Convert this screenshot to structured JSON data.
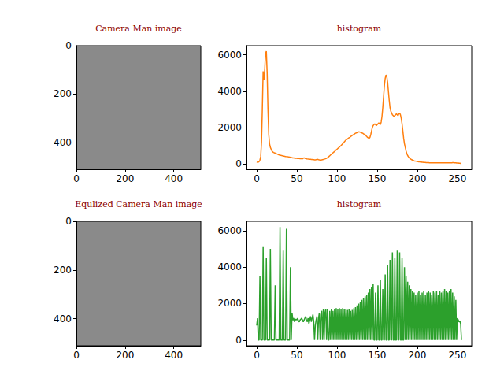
{
  "chart_data": [
    {
      "type": "image",
      "title": "Camera Man image",
      "xlim": [
        -0.5,
        511.5
      ],
      "ylim": [
        511.5,
        -0.5
      ],
      "xticks": [
        0,
        200,
        400
      ],
      "yticks": [
        0,
        200,
        400
      ]
    },
    {
      "type": "line",
      "title": "histogram",
      "color": "#ff7f0e",
      "x": [
        0,
        1,
        2,
        3,
        4,
        5,
        6,
        7,
        8,
        9,
        10,
        11,
        12,
        13,
        14,
        15,
        16,
        17,
        18,
        19,
        20,
        21,
        22,
        23,
        24,
        25,
        26,
        27,
        28,
        29,
        30,
        31,
        32,
        33,
        34,
        35,
        36,
        37,
        38,
        39,
        40,
        41,
        42,
        43,
        44,
        45,
        46,
        47,
        48,
        49,
        50,
        51,
        52,
        53,
        54,
        55,
        56,
        57,
        58,
        59,
        60,
        61,
        62,
        63,
        64,
        65,
        66,
        67,
        68,
        69,
        70,
        71,
        72,
        73,
        74,
        75,
        76,
        77,
        78,
        79,
        80,
        81,
        82,
        83,
        84,
        85,
        86,
        87,
        88,
        89,
        90,
        91,
        92,
        93,
        94,
        95,
        96,
        97,
        98,
        99,
        100,
        101,
        102,
        103,
        104,
        105,
        106,
        107,
        108,
        109,
        110,
        111,
        112,
        113,
        114,
        115,
        116,
        117,
        118,
        119,
        120,
        121,
        122,
        123,
        124,
        125,
        126,
        127,
        128,
        129,
        130,
        131,
        132,
        133,
        134,
        135,
        136,
        137,
        138,
        139,
        140,
        141,
        142,
        143,
        144,
        145,
        146,
        147,
        148,
        149,
        150,
        151,
        152,
        153,
        154,
        155,
        156,
        157,
        158,
        159,
        160,
        161,
        162,
        163,
        164,
        165,
        166,
        167,
        168,
        169,
        170,
        171,
        172,
        173,
        174,
        175,
        176,
        177,
        178,
        179,
        180,
        181,
        182,
        183,
        184,
        185,
        186,
        187,
        188,
        189,
        190,
        191,
        192,
        193,
        194,
        195,
        196,
        197,
        198,
        199,
        200,
        201,
        202,
        203,
        204,
        205,
        206,
        207,
        208,
        209,
        210,
        211,
        212,
        213,
        214,
        215,
        216,
        217,
        218,
        219,
        220,
        221,
        222,
        223,
        224,
        225,
        226,
        227,
        228,
        229,
        230,
        231,
        232,
        233,
        234,
        235,
        236,
        237,
        238,
        239,
        240,
        241,
        242,
        243,
        244,
        245,
        246,
        247,
        248,
        249,
        250,
        251,
        252,
        253,
        254,
        255
      ],
      "values": [
        100,
        80,
        90,
        120,
        200,
        400,
        1200,
        3000,
        5100,
        4600,
        5200,
        6100,
        6200,
        5000,
        3000,
        1600,
        1100,
        900,
        800,
        700,
        650,
        620,
        600,
        580,
        560,
        540,
        520,
        500,
        480,
        470,
        460,
        450,
        440,
        430,
        420,
        410,
        400,
        390,
        380,
        380,
        370,
        360,
        350,
        340,
        330,
        320,
        320,
        310,
        300,
        300,
        300,
        290,
        290,
        290,
        280,
        280,
        280,
        270,
        300,
        330,
        300,
        280,
        270,
        260,
        250,
        250,
        240,
        240,
        230,
        230,
        220,
        220,
        210,
        210,
        220,
        230,
        240,
        220,
        210,
        200,
        200,
        210,
        220,
        230,
        250,
        260,
        280,
        300,
        330,
        360,
        400,
        440,
        480,
        520,
        560,
        600,
        640,
        680,
        720,
        760,
        800,
        840,
        880,
        920,
        960,
        1000,
        1050,
        1100,
        1150,
        1200,
        1250,
        1300,
        1330,
        1360,
        1400,
        1430,
        1460,
        1500,
        1530,
        1560,
        1600,
        1620,
        1650,
        1680,
        1700,
        1720,
        1740,
        1760,
        1750,
        1740,
        1720,
        1700,
        1680,
        1650,
        1620,
        1600,
        1550,
        1500,
        1450,
        1420,
        1400,
        1450,
        1600,
        1800,
        2000,
        2100,
        2150,
        2200,
        2150,
        2100,
        2150,
        2200,
        2250,
        2200,
        2150,
        2300,
        2600,
        3100,
        3700,
        4300,
        4700,
        4900,
        4800,
        4500,
        4000,
        3500,
        3100,
        2900,
        2800,
        2700,
        2650,
        2600,
        2650,
        2700,
        2750,
        2700,
        2650,
        2750,
        2800,
        2700,
        2500,
        2200,
        1800,
        1400,
        1100,
        900,
        700,
        550,
        450,
        380,
        320,
        280,
        250,
        220,
        200,
        180,
        160,
        150,
        140,
        130,
        120,
        110,
        100,
        100,
        90,
        90,
        80,
        80,
        70,
        70,
        70,
        60,
        60,
        60,
        60,
        50,
        50,
        50,
        50,
        50,
        50,
        50,
        50,
        50,
        50,
        50,
        50,
        50,
        50,
        50,
        50,
        50,
        50,
        50,
        50,
        50,
        50,
        50,
        50,
        50,
        50,
        50,
        50,
        50,
        60,
        60,
        50,
        50,
        50,
        40,
        40,
        40,
        30,
        30,
        20,
        20
      ],
      "xlim": [
        -12.75,
        267.75
      ],
      "xticks": [
        0,
        50,
        100,
        150,
        200,
        250
      ],
      "ylim": [
        -310,
        6510
      ],
      "yticks": [
        0,
        2000,
        4000,
        6000
      ]
    },
    {
      "type": "image",
      "title": "Equlized Camera Man image",
      "xlim": [
        -0.5,
        511.5
      ],
      "ylim": [
        511.5,
        -0.5
      ],
      "xticks": [
        0,
        200,
        400
      ],
      "yticks": [
        0,
        200,
        400
      ]
    },
    {
      "type": "line",
      "title": "histogram",
      "color": "#2ca02c",
      "x": [
        0,
        1,
        2,
        3,
        4,
        5,
        6,
        7,
        8,
        9,
        10,
        11,
        12,
        13,
        14,
        15,
        16,
        17,
        18,
        19,
        20,
        21,
        22,
        23,
        24,
        25,
        26,
        27,
        28,
        29,
        30,
        31,
        32,
        33,
        34,
        35,
        36,
        37,
        38,
        39,
        40,
        41,
        42,
        43,
        44,
        45,
        46,
        47,
        48,
        49,
        50,
        51,
        52,
        53,
        54,
        55,
        56,
        57,
        58,
        59,
        60,
        61,
        62,
        63,
        64,
        65,
        66,
        67,
        68,
        69,
        70,
        71,
        72,
        73,
        74,
        75,
        76,
        77,
        78,
        79,
        80,
        81,
        82,
        83,
        84,
        85,
        86,
        87,
        88,
        89,
        90,
        91,
        92,
        93,
        94,
        95,
        96,
        97,
        98,
        99,
        100,
        101,
        102,
        103,
        104,
        105,
        106,
        107,
        108,
        109,
        110,
        111,
        112,
        113,
        114,
        115,
        116,
        117,
        118,
        119,
        120,
        121,
        122,
        123,
        124,
        125,
        126,
        127,
        128,
        129,
        130,
        131,
        132,
        133,
        134,
        135,
        136,
        137,
        138,
        139,
        140,
        141,
        142,
        143,
        144,
        145,
        146,
        147,
        148,
        149,
        150,
        151,
        152,
        153,
        154,
        155,
        156,
        157,
        158,
        159,
        160,
        161,
        162,
        163,
        164,
        165,
        166,
        167,
        168,
        169,
        170,
        171,
        172,
        173,
        174,
        175,
        176,
        177,
        178,
        179,
        180,
        181,
        182,
        183,
        184,
        185,
        186,
        187,
        188,
        189,
        190,
        191,
        192,
        193,
        194,
        195,
        196,
        197,
        198,
        199,
        200,
        201,
        202,
        203,
        204,
        205,
        206,
        207,
        208,
        209,
        210,
        211,
        212,
        213,
        214,
        215,
        216,
        217,
        218,
        219,
        220,
        221,
        222,
        223,
        224,
        225,
        226,
        227,
        228,
        229,
        230,
        231,
        232,
        233,
        234,
        235,
        236,
        237,
        238,
        239,
        240,
        241,
        242,
        243,
        244,
        245,
        246,
        247,
        248,
        249,
        250,
        251,
        252,
        253,
        254,
        255
      ],
      "values": [
        800,
        1200,
        0,
        0,
        3500,
        0,
        0,
        0,
        5100,
        0,
        0,
        0,
        4500,
        0,
        0,
        0,
        0,
        5000,
        0,
        0,
        0,
        0,
        0,
        3000,
        0,
        0,
        0,
        0,
        0,
        6200,
        0,
        0,
        0,
        4900,
        0,
        0,
        0,
        6100,
        0,
        0,
        0,
        0,
        4000,
        0,
        1500,
        1100,
        1200,
        1000,
        1100,
        1150,
        1100,
        1200,
        1050,
        1000,
        1100,
        1150,
        1200,
        1100,
        1000,
        1100,
        1200,
        1300,
        1100,
        1000,
        1200,
        900,
        1100,
        1300,
        1000,
        1200,
        1400,
        1000,
        0,
        800,
        1100,
        1300,
        0,
        1200,
        1500,
        0,
        1400,
        1600,
        0,
        1700,
        0,
        1500,
        1700,
        0,
        1700,
        0,
        0,
        1600,
        0,
        1700,
        0,
        1600,
        0,
        1700,
        0,
        1750,
        0,
        1700,
        0,
        1750,
        0,
        1700,
        0,
        1750,
        0,
        1700,
        0,
        1700,
        0,
        1650,
        0,
        1700,
        0,
        1600,
        0,
        1650,
        0,
        1750,
        0,
        1800,
        0,
        1900,
        0,
        2000,
        0,
        2100,
        0,
        2200,
        0,
        2300,
        0,
        2400,
        0,
        2500,
        0,
        2600,
        0,
        2800,
        0,
        2900,
        0,
        3100,
        0,
        0,
        2600,
        0,
        0,
        3000,
        0,
        0,
        3300,
        0,
        0,
        2800,
        0,
        0,
        3600,
        0,
        0,
        4100,
        0,
        0,
        4400,
        0,
        0,
        4800,
        0,
        0,
        4500,
        0,
        0,
        4900,
        0,
        0,
        4800,
        0,
        0,
        4500,
        0,
        0,
        4000,
        0,
        3500,
        0,
        3200,
        0,
        3000,
        0,
        2800,
        0,
        2700,
        0,
        2600,
        0,
        2500,
        0,
        2600,
        0,
        2700,
        0,
        2500,
        0,
        2600,
        0,
        2700,
        0,
        2500,
        0,
        2600,
        0,
        2700,
        0,
        2600,
        0,
        2500,
        0,
        2700,
        0,
        2600,
        0,
        2700,
        0,
        2500,
        0,
        2700,
        0,
        2600,
        0,
        2700,
        0,
        2800,
        0,
        2700,
        0,
        2600,
        0,
        2700,
        0,
        2800,
        0,
        2600,
        0,
        2400,
        0,
        2200,
        0,
        1200,
        1100,
        1000,
        1050,
        900,
        0
      ],
      "xlim": [
        -12.75,
        267.75
      ],
      "xticks": [
        0,
        50,
        100,
        150,
        200,
        250
      ],
      "ylim": [
        -310,
        6510
      ],
      "yticks": [
        0,
        2000,
        4000,
        6000
      ]
    }
  ]
}
